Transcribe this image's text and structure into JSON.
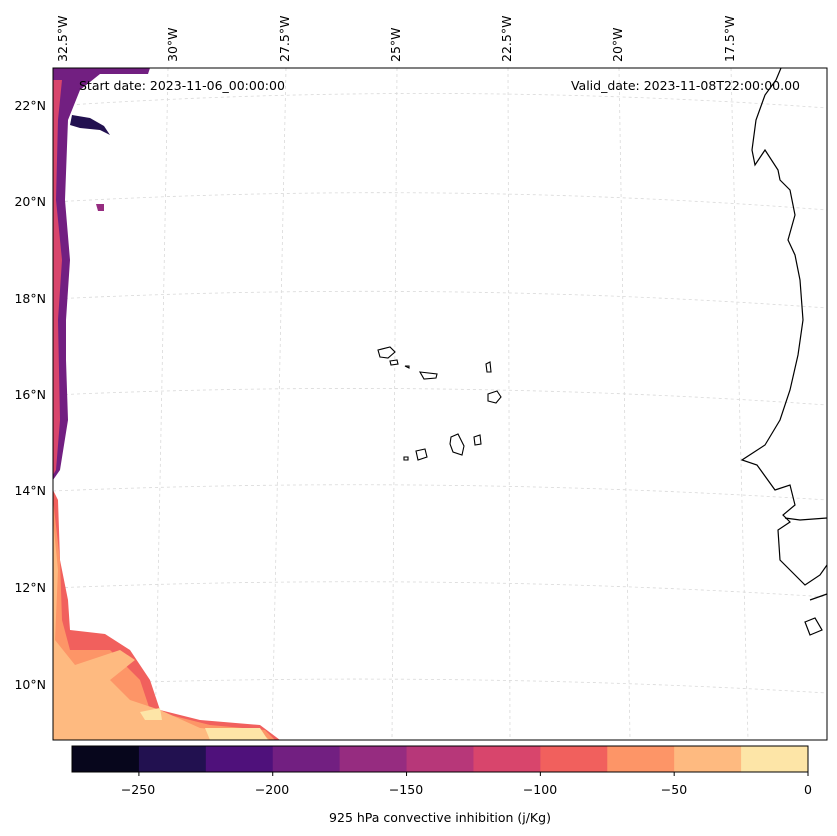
{
  "header": {
    "start_label": "Start date: 2023-11-06_00:00:00",
    "valid_label": "Valid_date: 2023-11-08T22:00:00.00"
  },
  "lon_labels": [
    "32.5°W",
    "30°W",
    "27.5°W",
    "25°W",
    "22.5°W",
    "20°W",
    "17.5°W"
  ],
  "lat_labels": [
    "22°N",
    "20°N",
    "18°N",
    "16°N",
    "14°N",
    "12°N",
    "10°N"
  ],
  "colorbar": {
    "label": "925 hPa convective inhibition (j/Kg)",
    "ticks": [
      "−250",
      "−200",
      "−150",
      "−100",
      "−50",
      "0"
    ],
    "levels": [
      -275,
      -250,
      -225,
      -200,
      -175,
      -150,
      -125,
      -100,
      -75,
      -50,
      -25,
      0
    ],
    "colors": [
      "#07061c",
      "#221150",
      "#4f117b",
      "#721f81",
      "#962c80",
      "#b73779",
      "#d8456c",
      "#f1605d",
      "#fd9567",
      "#feba80",
      "#fde5a7"
    ]
  },
  "map": {
    "coastline_color": "#000000",
    "grid_color": "#d9d9d9",
    "features": [
      "Cape Verde islands",
      "West African coastline"
    ]
  }
}
